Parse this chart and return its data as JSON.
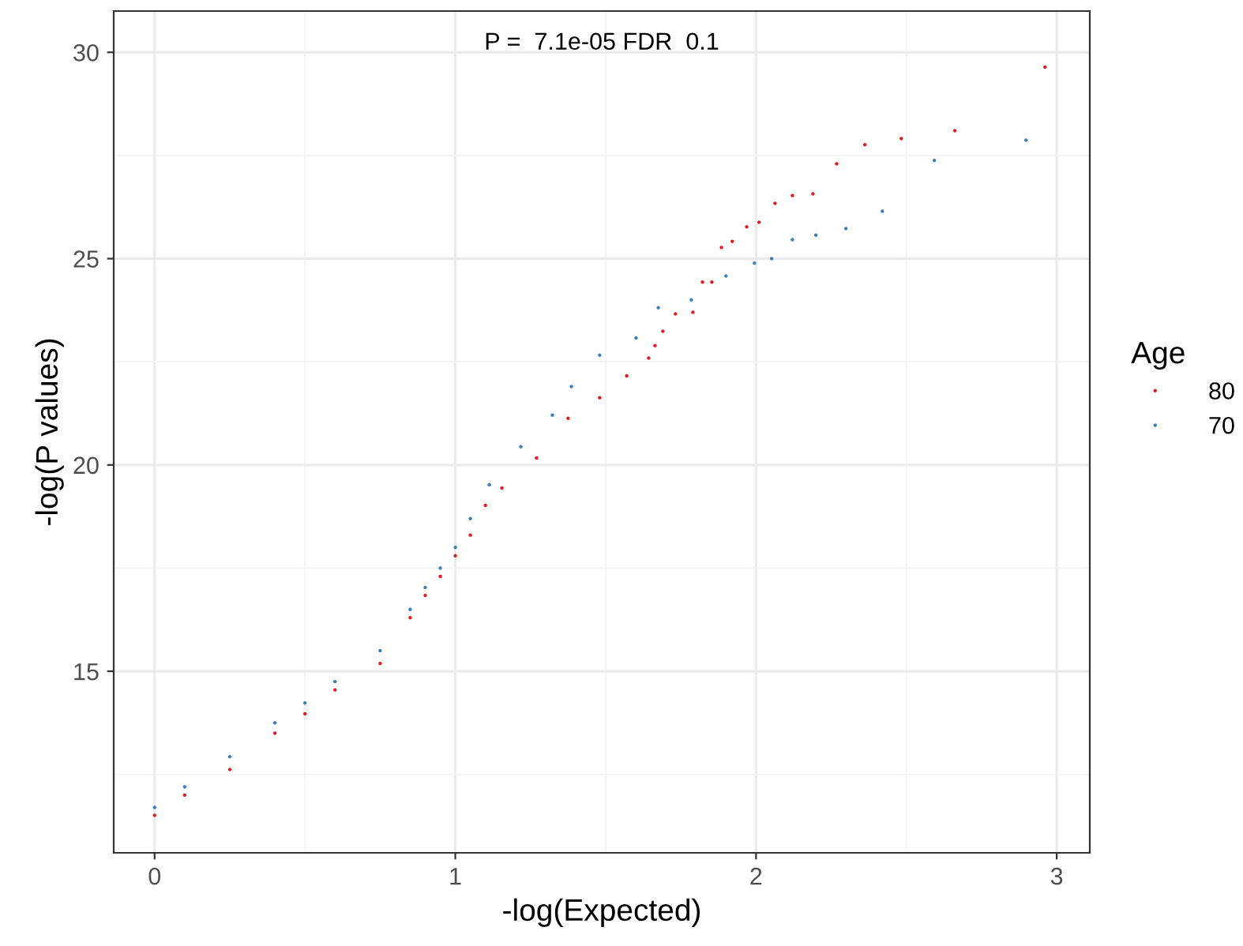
{
  "chart_data": {
    "type": "scatter",
    "xlabel": "-log(Expected)",
    "ylabel": "-log(P values)",
    "legend_title": "Age",
    "annotations": [
      "P =  7.1e-05 FDR  0.1"
    ],
    "xlim": [
      -0.136,
      3.11
    ],
    "ylim": [
      10.6,
      31.0
    ],
    "xticks": [
      0,
      1,
      2,
      3
    ],
    "yticks": [
      15,
      20,
      25,
      30
    ],
    "grid": true,
    "legend": "right",
    "marker": "circle",
    "series": [
      {
        "name": "80",
        "color": "#e41a1c",
        "x": [
          0,
          0.1,
          0.25,
          0.4,
          0.5,
          0.6,
          0.75,
          0.85,
          0.9,
          0.95,
          1.0,
          1.05,
          1.1,
          1.155,
          1.27,
          1.375,
          1.48,
          1.57,
          1.643,
          1.664,
          1.69,
          1.732,
          1.79,
          1.822,
          1.853,
          1.885,
          1.921,
          1.969,
          2.01,
          2.063,
          2.121,
          2.189,
          2.268,
          2.362,
          2.483,
          2.661,
          2.961
        ],
        "values": [
          11.51,
          12.0,
          12.62,
          13.5,
          13.97,
          14.55,
          15.19,
          16.3,
          16.84,
          17.3,
          17.8,
          18.3,
          19.02,
          19.44,
          20.17,
          21.13,
          21.63,
          22.16,
          22.59,
          22.89,
          23.24,
          23.66,
          23.7,
          24.43,
          24.43,
          25.27,
          25.42,
          25.77,
          25.88,
          26.34,
          26.53,
          26.57,
          27.3,
          27.76,
          27.91,
          28.1,
          29.64
        ]
      },
      {
        "name": "70",
        "color": "#377eb8",
        "x": [
          0,
          0.1,
          0.25,
          0.4,
          0.5,
          0.6,
          0.75,
          0.85,
          0.9,
          0.95,
          1.0,
          1.05,
          1.113,
          1.218,
          1.323,
          1.386,
          1.48,
          1.601,
          1.675,
          1.785,
          1.9,
          1.995,
          2.052,
          2.121,
          2.199,
          2.299,
          2.42,
          2.593,
          2.898
        ],
        "values": [
          11.7,
          12.2,
          12.93,
          13.75,
          14.23,
          14.75,
          15.5,
          16.5,
          17.03,
          17.5,
          18.0,
          18.7,
          19.52,
          20.44,
          21.21,
          21.9,
          22.66,
          23.08,
          23.81,
          24.0,
          24.58,
          24.89,
          25.0,
          25.46,
          25.57,
          25.73,
          26.15,
          27.38,
          27.87
        ]
      }
    ]
  }
}
